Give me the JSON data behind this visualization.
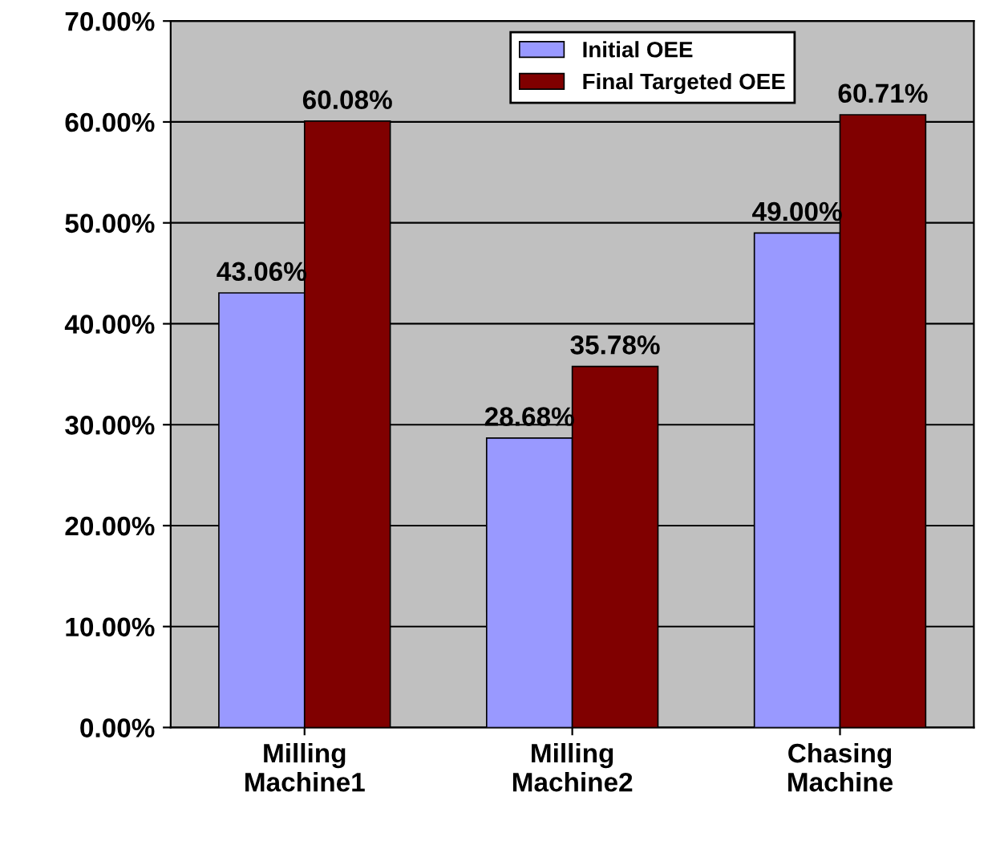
{
  "chart_data": {
    "type": "bar",
    "categories": [
      "Milling\nMachine1",
      "Milling\nMachine2",
      "Chasing\nMachine"
    ],
    "series": [
      {
        "name": "Initial OEE",
        "color": "#9999ff",
        "values": [
          43.06,
          28.68,
          49.0
        ],
        "value_labels": [
          "43.06%",
          "28.68%",
          "49.00%"
        ]
      },
      {
        "name": "Final Targeted OEE",
        "color": "#800000",
        "values": [
          60.08,
          35.78,
          60.71
        ],
        "value_labels": [
          "60.08%",
          "35.78%",
          "60.71%"
        ]
      }
    ],
    "ylim": [
      0,
      70
    ],
    "yticks": [
      {
        "value": 0,
        "label": "0.00%"
      },
      {
        "value": 10,
        "label": "10.00%"
      },
      {
        "value": 20,
        "label": "20.00%"
      },
      {
        "value": 30,
        "label": "30.00%"
      },
      {
        "value": 40,
        "label": "40.00%"
      },
      {
        "value": 50,
        "label": "50.00%"
      },
      {
        "value": 60,
        "label": "60.00%"
      },
      {
        "value": 70,
        "label": "70.00%"
      }
    ],
    "grid": "y",
    "legend": "top"
  }
}
